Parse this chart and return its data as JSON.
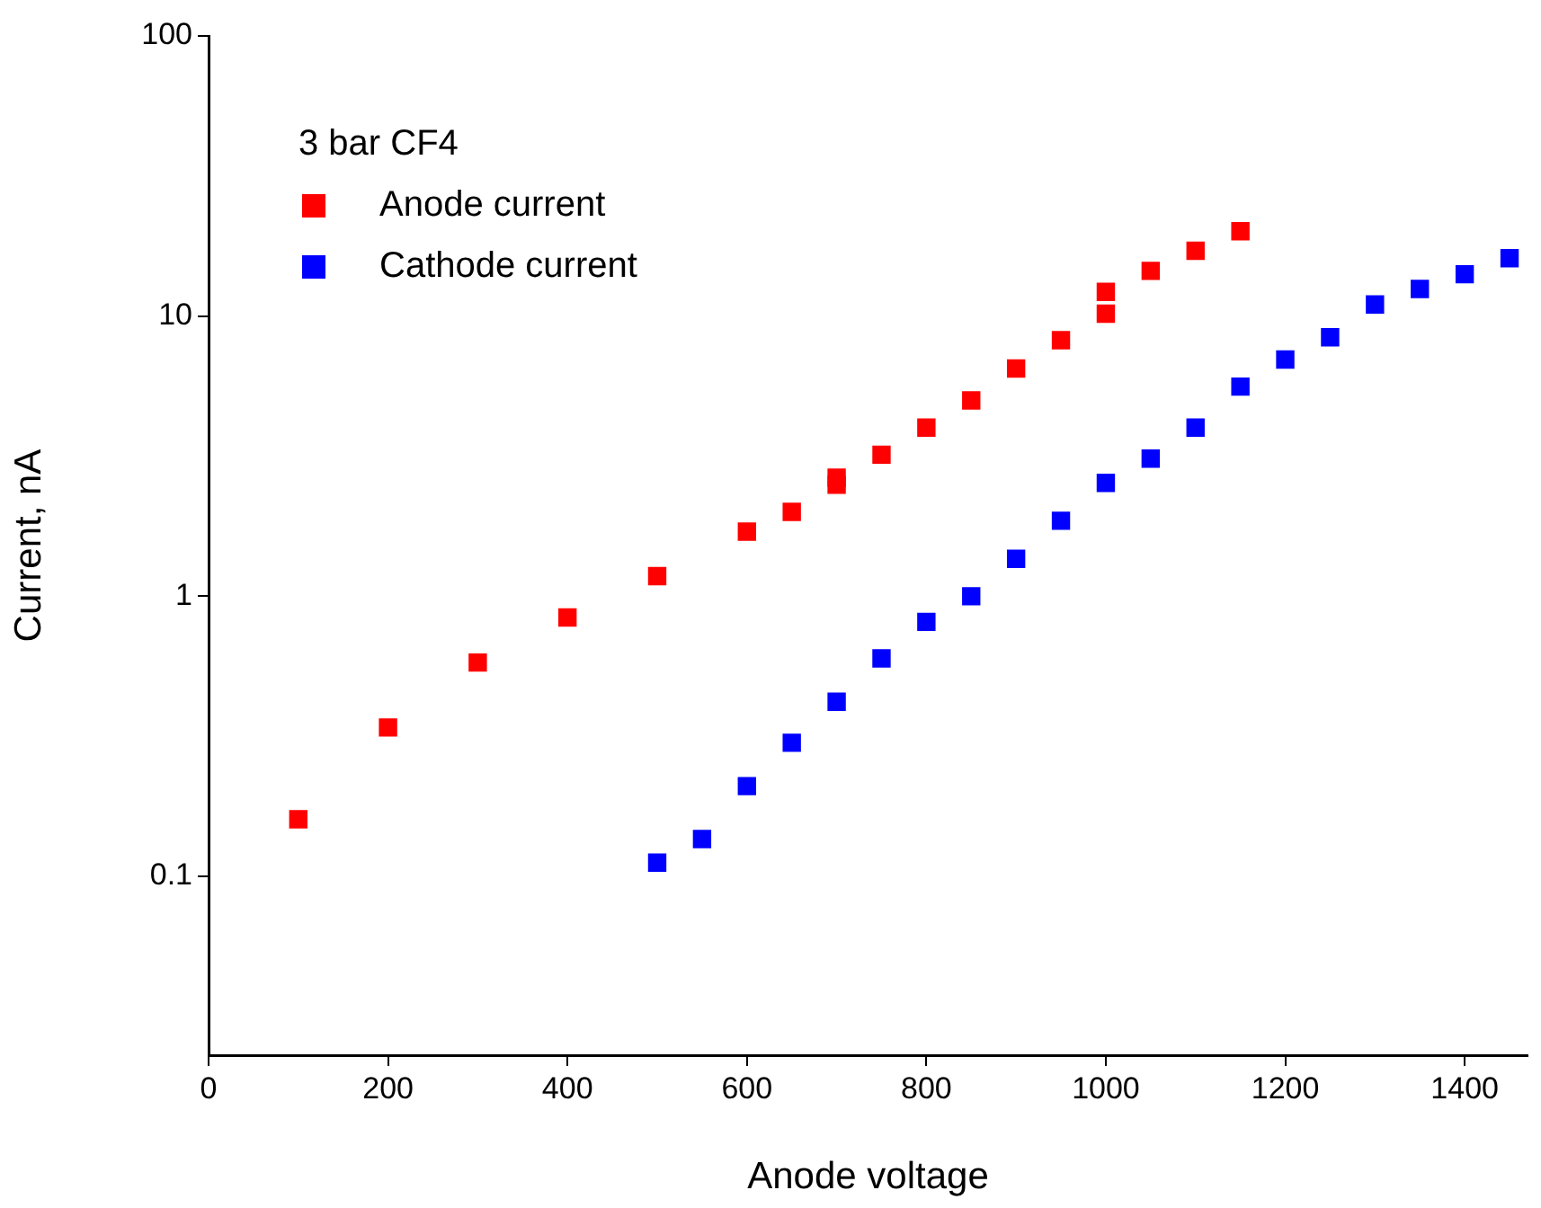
{
  "chart_data": {
    "type": "scatter",
    "xlabel": "Anode voltage",
    "ylabel": "Current, nA",
    "legend_title": "3 bar CF4",
    "legend": "top left",
    "marker": "square",
    "log": "y",
    "grid": false,
    "xlim": [
      0,
      1470
    ],
    "xticks": [
      0,
      200,
      400,
      600,
      800,
      1000,
      1200,
      1400
    ],
    "ylim": [
      0.023,
      100
    ],
    "yticks": [
      0.1,
      1,
      10,
      100
    ],
    "series": [
      {
        "name": "Anode current",
        "color": "#ff0000",
        "x": [
          100,
          200,
          300,
          400,
          500,
          600,
          650,
          700,
          700,
          750,
          800,
          850,
          900,
          950,
          1000,
          1000,
          1050,
          1100,
          1150
        ],
        "values": [
          0.16,
          0.34,
          0.58,
          0.84,
          1.18,
          1.7,
          2.0,
          2.5,
          2.65,
          3.2,
          4.0,
          5.0,
          6.5,
          8.2,
          10.2,
          12.2,
          14.5,
          17.1,
          20.1
        ]
      },
      {
        "name": "Cathode current",
        "color": "#0000ff",
        "x": [
          500,
          550,
          600,
          650,
          700,
          750,
          800,
          850,
          900,
          950,
          1000,
          1050,
          1100,
          1150,
          1200,
          1250,
          1300,
          1350,
          1400,
          1450
        ],
        "values": [
          0.112,
          0.136,
          0.21,
          0.3,
          0.42,
          0.6,
          0.81,
          1.0,
          1.36,
          1.86,
          2.54,
          3.1,
          4.0,
          5.6,
          7.0,
          8.4,
          11.0,
          12.5,
          14.1,
          16.1
        ]
      }
    ]
  }
}
